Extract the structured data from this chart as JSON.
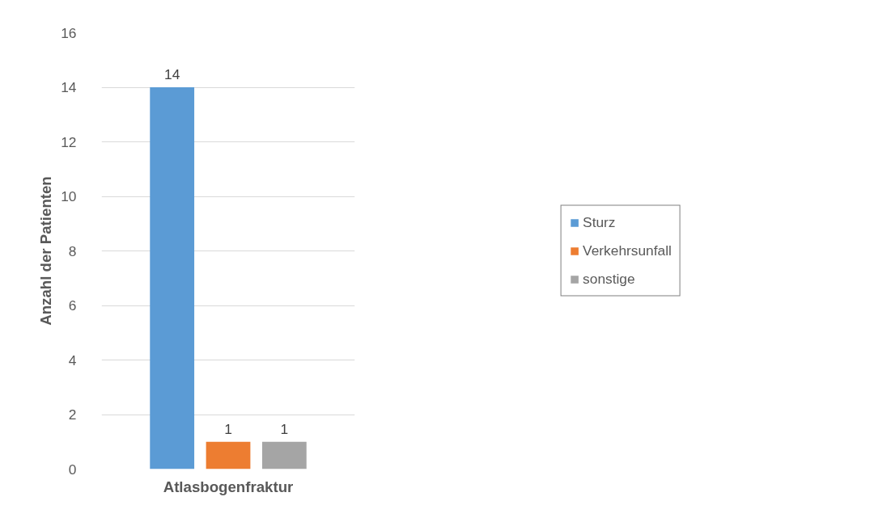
{
  "chart_data": {
    "type": "bar",
    "xlabel": "Atlasbogenfraktur",
    "ylabel": "Anzahl der Patienten",
    "categories": [
      null
    ],
    "series": [
      {
        "name": "Sturz",
        "color": "#5b9bd5",
        "values": [
          14
        ]
      },
      {
        "name": "Verkehrsunfall",
        "color": "#ed7d31",
        "values": [
          1
        ]
      },
      {
        "name": "sonstige",
        "color": "#a5a5a5",
        "values": [
          1
        ]
      }
    ],
    "ylim": [
      0,
      16
    ],
    "yticks": [
      0,
      2,
      4,
      6,
      8,
      10,
      12,
      14,
      16
    ],
    "grid": "y",
    "legend": "right",
    "data_labels": true
  }
}
